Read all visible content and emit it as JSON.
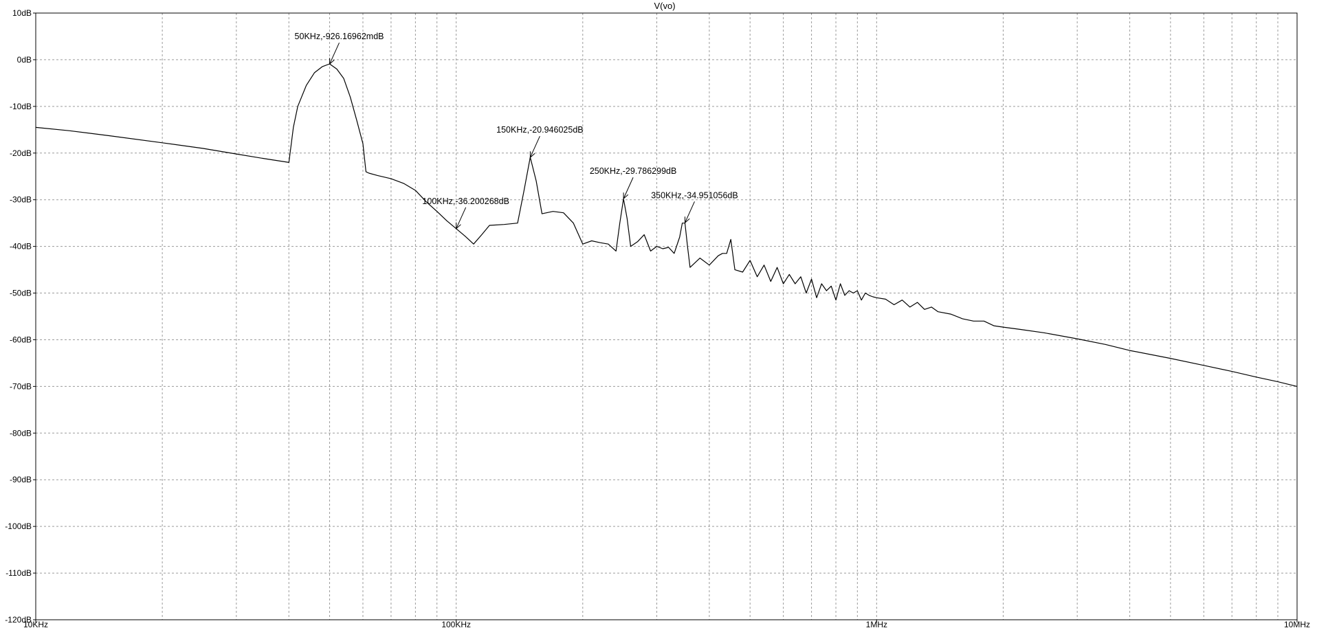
{
  "chart_data": {
    "type": "line",
    "title": "V(vo)",
    "xlabel": "",
    "ylabel": "",
    "xscale": "log",
    "xlim": [
      10000,
      10000000
    ],
    "ylim": [
      -120,
      10
    ],
    "grid": true,
    "x_ticks": [
      {
        "value": 10000,
        "label": "10KHz"
      },
      {
        "value": 100000,
        "label": "100KHz"
      },
      {
        "value": 1000000,
        "label": "1MHz"
      },
      {
        "value": 10000000,
        "label": "10MHz"
      }
    ],
    "y_ticks": [
      {
        "value": 10,
        "label": "10dB"
      },
      {
        "value": 0,
        "label": "0dB"
      },
      {
        "value": -10,
        "label": "-10dB"
      },
      {
        "value": -20,
        "label": "-20dB"
      },
      {
        "value": -30,
        "label": "-30dB"
      },
      {
        "value": -40,
        "label": "-40dB"
      },
      {
        "value": -50,
        "label": "-50dB"
      },
      {
        "value": -60,
        "label": "-60dB"
      },
      {
        "value": -70,
        "label": "-70dB"
      },
      {
        "value": -80,
        "label": "-80dB"
      },
      {
        "value": -90,
        "label": "-90dB"
      },
      {
        "value": -100,
        "label": "-100dB"
      },
      {
        "value": -110,
        "label": "-110dB"
      },
      {
        "value": -120,
        "label": "-120dB"
      }
    ],
    "series": [
      {
        "name": "V(vo)",
        "color": "#000000",
        "x": [
          10000,
          12000,
          15000,
          20000,
          25000,
          30000,
          35000,
          40000,
          41000,
          42000,
          44000,
          46000,
          48000,
          50000,
          52000,
          54000,
          56000,
          58000,
          60000,
          61000,
          62000,
          65000,
          70000,
          75000,
          80000,
          85000,
          90000,
          95000,
          100000,
          105000,
          110000,
          115000,
          120000,
          130000,
          140000,
          145000,
          150000,
          155000,
          160000,
          170000,
          180000,
          190000,
          200000,
          210000,
          220000,
          230000,
          240000,
          245000,
          250000,
          255000,
          260000,
          270000,
          280000,
          290000,
          300000,
          310000,
          320000,
          330000,
          340000,
          345000,
          350000,
          355000,
          360000,
          380000,
          400000,
          420000,
          430000,
          440000,
          450000,
          460000,
          480000,
          500000,
          520000,
          540000,
          560000,
          580000,
          600000,
          620000,
          640000,
          660000,
          680000,
          700000,
          720000,
          740000,
          760000,
          780000,
          800000,
          820000,
          840000,
          860000,
          880000,
          900000,
          920000,
          940000,
          960000,
          980000,
          1000000,
          1050000,
          1100000,
          1150000,
          1200000,
          1250000,
          1300000,
          1350000,
          1400000,
          1500000,
          1600000,
          1700000,
          1800000,
          1900000,
          2000000,
          2200000,
          2500000,
          3000000,
          3500000,
          4000000,
          5000000,
          6000000,
          7000000,
          8000000,
          9000000,
          10000000
        ],
        "y": [
          -14.5,
          -15.2,
          -16.3,
          -17.8,
          -19.0,
          -20.2,
          -21.2,
          -22.0,
          -14.5,
          -10.0,
          -5.5,
          -2.8,
          -1.5,
          -0.9,
          -2.0,
          -4.0,
          -8.0,
          -13.0,
          -18.0,
          -24.0,
          -24.3,
          -24.8,
          -25.5,
          -26.5,
          -28.0,
          -30.5,
          -32.5,
          -34.5,
          -36.2,
          -37.8,
          -39.5,
          -37.5,
          -35.5,
          -35.3,
          -35.0,
          -28.0,
          -20.9,
          -26.0,
          -33.0,
          -32.5,
          -32.8,
          -35.0,
          -39.5,
          -38.8,
          -39.2,
          -39.5,
          -41.0,
          -35.0,
          -29.8,
          -34.0,
          -40.0,
          -39.0,
          -37.5,
          -41.0,
          -40.0,
          -40.5,
          -40.2,
          -41.5,
          -38.0,
          -35.0,
          -35.0,
          -40.0,
          -44.5,
          -42.5,
          -44.0,
          -42.0,
          -41.5,
          -41.5,
          -38.5,
          -45.0,
          -45.5,
          -43.0,
          -46.5,
          -44.0,
          -47.5,
          -44.5,
          -48.0,
          -46.0,
          -48.0,
          -46.5,
          -50.0,
          -47.0,
          -51.0,
          -48.0,
          -49.5,
          -48.5,
          -51.5,
          -48.0,
          -50.5,
          -49.5,
          -50.0,
          -49.5,
          -51.5,
          -50.0,
          -50.5,
          -50.8,
          -51.0,
          -51.3,
          -52.5,
          -51.5,
          -53.0,
          -52.0,
          -53.5,
          -53.0,
          -54.0,
          -54.5,
          -55.5,
          -56.0,
          -56.0,
          -57.0,
          -57.3,
          -57.8,
          -58.5,
          -59.8,
          -61.0,
          -62.3,
          -64.0,
          -65.5,
          -66.8,
          -68.0,
          -69.0,
          -70.0
        ]
      }
    ],
    "annotations": [
      {
        "x": 50000,
        "y": -0.926,
        "label": "50KHz,-926.16962mdB"
      },
      {
        "x": 100000,
        "y": -36.2,
        "label": "100KHz,-36.200268dB"
      },
      {
        "x": 150000,
        "y": -20.946,
        "label": "150KHz,-20.946025dB"
      },
      {
        "x": 250000,
        "y": -29.786,
        "label": "250KHz,-29.786299dB"
      },
      {
        "x": 350000,
        "y": -34.951,
        "label": "350KHz,-34.951056dB"
      }
    ]
  }
}
